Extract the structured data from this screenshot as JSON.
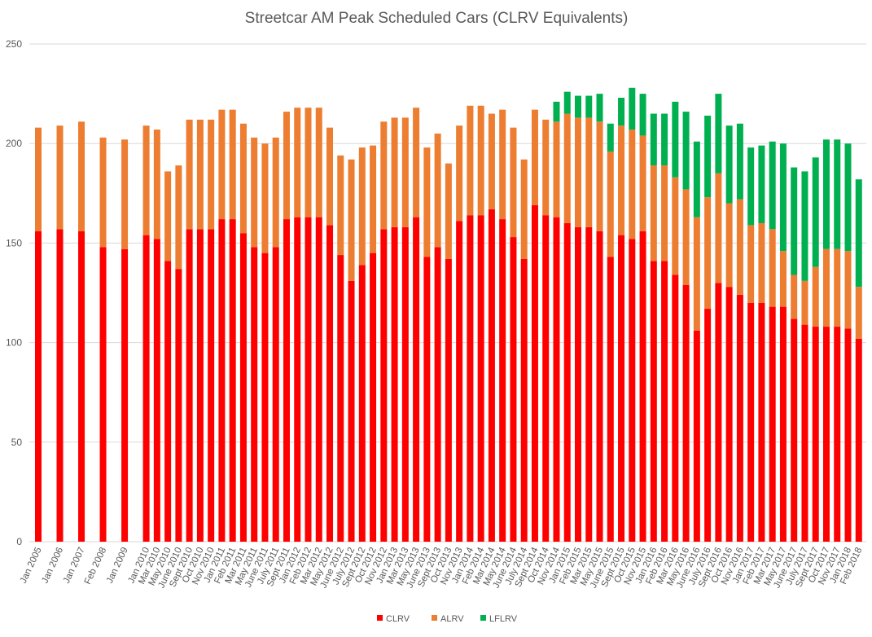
{
  "chart_data": {
    "type": "bar",
    "stacked": true,
    "title": "Streetcar AM Peak Scheduled Cars (CLRV Equivalents)",
    "xlabel": "",
    "ylabel": "",
    "ylim": [
      0,
      250
    ],
    "yticks": [
      0,
      50,
      100,
      150,
      200,
      250
    ],
    "grid": true,
    "legend_position": "bottom",
    "categories": [
      "Jan 2005",
      "Jan 2006",
      "Jan 2007",
      "Feb 2008",
      "Jan 2009",
      "Jan 2010",
      "Mar 2010",
      "May 2010",
      "June 2010",
      "Sept 2010",
      "Oct 2010",
      "Nov 2010",
      "Jan 2011",
      "Feb 2011",
      "Mar 2011",
      "May 2011",
      "June 2011",
      "July 2011",
      "Sept 2011",
      "Jan 2012",
      "Feb 2012",
      "Mar 2012",
      "May 2012",
      "June 2012",
      "July 2012",
      "Sept 2012",
      "Oct 2012",
      "Nov 2012",
      "Jan 2013",
      "Mar 2013",
      "May 2013",
      "June 2013",
      "Sept 2013",
      "Oct 2013",
      "Nov 2013",
      "Jan 2014",
      "Feb 2014",
      "Mar 2014",
      "May 2014",
      "June 2014",
      "July 2014",
      "Sept 2014",
      "Oct 2014",
      "Nov 2014",
      "Jan 2015",
      "Feb 2015",
      "Mar 2015",
      "May 2015",
      "June 2015",
      "Sept 2015",
      "Oct 2015",
      "Nov 2015",
      "Jan 2016",
      "Feb 2016",
      "Mar 2016",
      "May 2016",
      "June 2016",
      "July 2016",
      "Sept 2016",
      "Oct 2016",
      "Nov 2016",
      "Jan 2017",
      "Feb 2017",
      "Mar 2017",
      "May 2017",
      "June 2017",
      "July 2017",
      "Sept 2017",
      "Oct 2017",
      "Nov 2017",
      "Jan 2018",
      "Feb 2018"
    ],
    "series": [
      {
        "name": "CLRV",
        "color": "#ff0000",
        "values": [
          156,
          157,
          156,
          148,
          147,
          154,
          152,
          141,
          137,
          157,
          157,
          157,
          162,
          162,
          155,
          148,
          145,
          148,
          162,
          163,
          163,
          163,
          159,
          144,
          131,
          139,
          145,
          157,
          158,
          158,
          163,
          143,
          148,
          142,
          161,
          164,
          164,
          167,
          162,
          153,
          142,
          169,
          164,
          163,
          160,
          158,
          158,
          156,
          143,
          154,
          152,
          156,
          141,
          141,
          134,
          129,
          106,
          117,
          130,
          128,
          124,
          120,
          120,
          118,
          118,
          112,
          109,
          108,
          108,
          108,
          107,
          102
        ]
      },
      {
        "name": "ALRV",
        "color": "#ed7d31",
        "values": [
          52,
          52,
          55,
          55,
          55,
          55,
          55,
          45,
          52,
          55,
          55,
          55,
          55,
          55,
          55,
          55,
          55,
          55,
          54,
          55,
          55,
          55,
          49,
          50,
          61,
          59,
          54,
          54,
          55,
          55,
          55,
          55,
          57,
          48,
          48,
          55,
          55,
          48,
          55,
          55,
          50,
          48,
          48,
          48,
          55,
          55,
          55,
          55,
          53,
          55,
          55,
          48,
          48,
          48,
          49,
          48,
          57,
          56,
          55,
          42,
          48,
          39,
          40,
          39,
          28,
          22,
          22,
          30,
          39,
          39,
          39,
          26
        ]
      },
      {
        "name": "LFLRV",
        "color": "#00b050",
        "values": [
          0,
          0,
          0,
          0,
          0,
          0,
          0,
          0,
          0,
          0,
          0,
          0,
          0,
          0,
          0,
          0,
          0,
          0,
          0,
          0,
          0,
          0,
          0,
          0,
          0,
          0,
          0,
          0,
          0,
          0,
          0,
          0,
          0,
          0,
          0,
          0,
          0,
          0,
          0,
          0,
          0,
          0,
          0,
          10,
          11,
          11,
          11,
          14,
          14,
          14,
          21,
          21,
          26,
          26,
          38,
          39,
          38,
          41,
          40,
          39,
          38,
          39,
          39,
          44,
          54,
          54,
          55,
          55,
          55,
          55,
          54,
          54
        ]
      }
    ]
  }
}
